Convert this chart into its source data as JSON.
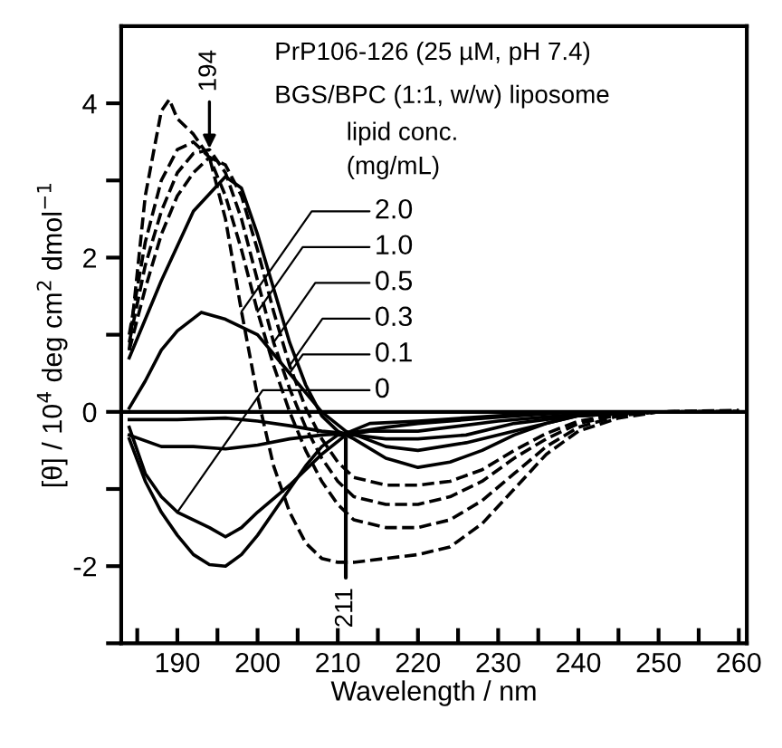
{
  "chart_data": {
    "type": "line",
    "xlabel": "Wavelength / nm",
    "ylabel": "[θ] / 10$^{4}$ deg cm$^{2}$ dmol$^{−1}$",
    "xlim": [
      183,
      261
    ],
    "ylim": [
      -3,
      5
    ],
    "xticks": [
      {
        "value": 185,
        "label": null
      },
      190,
      {
        "value": 195,
        "label": null
      },
      200,
      {
        "value": 205,
        "label": null
      },
      210,
      {
        "value": 215,
        "label": null
      },
      220,
      {
        "value": 225,
        "label": null
      },
      230,
      {
        "value": 235,
        "label": null
      },
      240,
      {
        "value": 245,
        "label": null
      },
      250,
      {
        "value": 255,
        "label": null
      },
      260
    ],
    "yticks": [
      {
        "value": -3,
        "label": null
      },
      -2,
      {
        "value": -1,
        "label": null
      },
      0,
      {
        "value": 1,
        "label": null
      },
      2,
      {
        "value": 3,
        "label": null
      },
      4
    ],
    "grid": false,
    "legend": false,
    "marker": "none",
    "ref_lines": [
      {
        "axis": "y",
        "value": 0,
        "color": "#000000",
        "line_style": "solid"
      }
    ],
    "annotations": [
      "PrP106-126 (25 µM, pH 7.4)",
      "BGS/BPC (1:1, w/w) liposome",
      "lipid conc.",
      "(mg/mL)",
      {
        "text": "194",
        "x": 194,
        "y": 3.35
      },
      {
        "text": "211",
        "x": 211,
        "y": -0.28
      },
      {
        "text": "2.0",
        "x": 198,
        "y": 1.3
      },
      {
        "text": "1.0",
        "x": 200,
        "y": 1.3
      },
      {
        "text": "0.5",
        "x": 202,
        "y": 0.9
      },
      {
        "text": "0.3",
        "x": 204,
        "y": 0.6
      },
      {
        "text": "0.1",
        "x": 204,
        "y": 0.5
      },
      {
        "text": "0",
        "x": 190,
        "y": -1.3
      }
    ],
    "series": [
      {
        "color": "#000000",
        "line_style": "dashed",
        "x": [
          184,
          186,
          188,
          189,
          190,
          192,
          194,
          196,
          198,
          200,
          202,
          204,
          206,
          208,
          210,
          212,
          216,
          220,
          224,
          228,
          232,
          236,
          240,
          245,
          250,
          260
        ],
        "values": [
          0.8,
          2.8,
          3.9,
          4.05,
          3.8,
          3.6,
          3.3,
          2.5,
          1.3,
          0.2,
          -0.7,
          -1.3,
          -1.7,
          -1.9,
          -1.95,
          -1.95,
          -1.9,
          -1.85,
          -1.75,
          -1.45,
          -1.0,
          -0.55,
          -0.25,
          -0.08,
          0,
          0.02
        ]
      },
      {
        "color": "#000000",
        "line_style": "dashed",
        "x": [
          184,
          186,
          188,
          190,
          192,
          194,
          196,
          198,
          200,
          202,
          204,
          206,
          208,
          210,
          212,
          216,
          220,
          224,
          228,
          232,
          236,
          240,
          245,
          250,
          260
        ],
        "values": [
          1.0,
          2.2,
          3.0,
          3.4,
          3.5,
          3.3,
          2.8,
          2.1,
          1.3,
          0.6,
          0.0,
          -0.5,
          -0.9,
          -1.2,
          -1.4,
          -1.5,
          -1.5,
          -1.4,
          -1.15,
          -0.8,
          -0.45,
          -0.2,
          -0.05,
          0,
          0.01
        ]
      },
      {
        "color": "#000000",
        "line_style": "dashed",
        "x": [
          184,
          186,
          188,
          190,
          192,
          194,
          196,
          198,
          200,
          202,
          204,
          206,
          208,
          210,
          212,
          216,
          220,
          224,
          228,
          232,
          236,
          240,
          245,
          250,
          260
        ],
        "values": [
          0.9,
          1.9,
          2.6,
          3.1,
          3.35,
          3.4,
          3.1,
          2.5,
          1.7,
          0.9,
          0.3,
          -0.2,
          -0.6,
          -0.9,
          -1.1,
          -1.2,
          -1.2,
          -1.1,
          -0.9,
          -0.6,
          -0.35,
          -0.15,
          -0.04,
          0,
          0.01
        ]
      },
      {
        "color": "#000000",
        "line_style": "dashed",
        "x": [
          184,
          186,
          188,
          190,
          192,
          194,
          196,
          198,
          200,
          202,
          204,
          206,
          208,
          210,
          212,
          216,
          220,
          224,
          228,
          232,
          236,
          240,
          245,
          250,
          260
        ],
        "values": [
          0.8,
          1.6,
          2.3,
          2.8,
          3.1,
          3.3,
          3.2,
          2.8,
          2.1,
          1.3,
          0.6,
          0.05,
          -0.35,
          -0.65,
          -0.85,
          -0.95,
          -0.95,
          -0.9,
          -0.75,
          -0.5,
          -0.28,
          -0.12,
          -0.03,
          0,
          0.01
        ]
      },
      {
        "color": "#000000",
        "line_style": "solid",
        "x": [
          184,
          188,
          192,
          196,
          198,
          200,
          202,
          204,
          206,
          208,
          210,
          212,
          216,
          220,
          224,
          228,
          232,
          236,
          240,
          250,
          260
        ],
        "values": [
          0.7,
          1.7,
          2.6,
          3.05,
          2.9,
          2.3,
          1.6,
          0.9,
          0.35,
          -0.05,
          -0.25,
          -0.35,
          -0.6,
          -0.72,
          -0.65,
          -0.5,
          -0.3,
          -0.15,
          -0.05,
          0,
          0
        ]
      },
      {
        "color": "#000000",
        "line_style": "solid",
        "x": [
          184,
          186,
          188,
          190,
          193,
          196,
          200,
          204,
          208,
          211,
          216,
          220,
          226,
          232,
          240,
          250,
          260
        ],
        "values": [
          0.05,
          0.4,
          0.8,
          1.05,
          1.29,
          1.2,
          1.0,
          0.5,
          0.0,
          -0.25,
          -0.45,
          -0.5,
          -0.4,
          -0.25,
          -0.05,
          0,
          0
        ]
      },
      {
        "color": "#000000",
        "line_style": "solid",
        "x": [
          184,
          186,
          188,
          190,
          192,
          194,
          196,
          198,
          200,
          202,
          204,
          206,
          208,
          210,
          212,
          216,
          220,
          226,
          232,
          240,
          250,
          260
        ],
        "values": [
          -0.35,
          -0.9,
          -1.3,
          -1.6,
          -1.85,
          -1.98,
          -2.0,
          -1.85,
          -1.6,
          -1.3,
          -1.0,
          -0.7,
          -0.45,
          -0.3,
          -0.3,
          -0.35,
          -0.35,
          -0.3,
          -0.15,
          -0.05,
          0,
          0
        ]
      },
      {
        "color": "#000000",
        "line_style": "solid",
        "x": [
          184,
          186,
          188,
          190,
          194,
          196,
          198,
          200,
          204,
          208,
          211,
          214,
          220,
          230,
          240,
          250,
          260
        ],
        "values": [
          -0.2,
          -0.8,
          -1.1,
          -1.3,
          -1.5,
          -1.62,
          -1.5,
          -1.3,
          -0.95,
          -0.55,
          -0.3,
          -0.25,
          -0.25,
          -0.12,
          -0.03,
          0,
          0
        ]
      },
      {
        "color": "#000000",
        "line_style": "solid",
        "x": [
          184,
          188,
          192,
          196,
          200,
          204,
          208,
          211,
          216,
          220,
          230,
          240,
          250,
          260
        ],
        "values": [
          -0.3,
          -0.45,
          -0.45,
          -0.48,
          -0.43,
          -0.35,
          -0.3,
          -0.28,
          -0.2,
          -0.15,
          -0.07,
          0,
          0,
          0
        ]
      },
      {
        "color": "#000000",
        "line_style": "solid",
        "x": [
          184,
          190,
          196,
          200,
          204,
          208,
          211,
          214,
          220,
          230,
          240,
          250,
          260
        ],
        "values": [
          -0.1,
          -0.1,
          -0.08,
          -0.12,
          -0.18,
          -0.25,
          -0.28,
          -0.15,
          -0.12,
          -0.05,
          0,
          0,
          0
        ]
      }
    ]
  }
}
